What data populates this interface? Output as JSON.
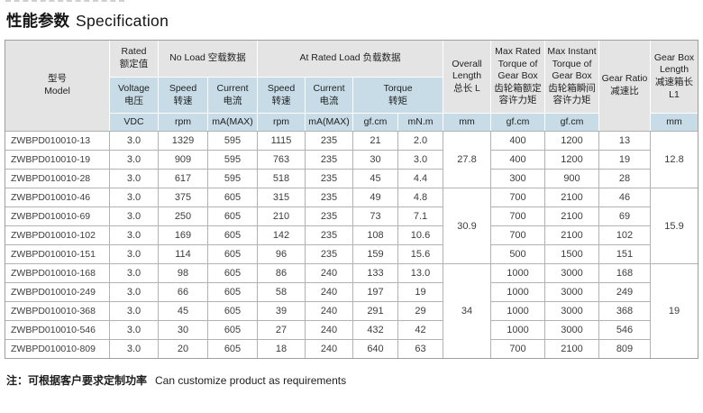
{
  "title": {
    "zh": "性能参数",
    "en": "Specification"
  },
  "note": {
    "zh": "注：可根据客户要求定制功率",
    "en": "Can customize product as requirements"
  },
  "colors": {
    "header_gray": "#e4e4e4",
    "header_blue": "#c7dce7",
    "grid_line": "#b2b2b2",
    "outer_border": "#9f9f9f",
    "text": "#3d3d3d"
  },
  "table": {
    "header": {
      "model": "型号\nModel",
      "rated": "Rated\n额定值",
      "no_load": "No Load 空载数据",
      "at_rated_load": "At Rated Load 负载数据",
      "voltage": "Voltage\n电压",
      "speed": "Speed\n转速",
      "current": "Current\n电流",
      "torque": "Torque\n转矩",
      "overall_length": "Overall\nLength\n总长 L",
      "max_rated_torque": "Max Rated\nTorque of\nGear Box\n齿轮箱额定\n容许力矩",
      "max_instant_torque": "Max Instant\nTorque of\nGear Box\n齿轮箱瞬间\n容许力矩",
      "gear_ratio": "Gear Ratio\n减速比",
      "gearbox_length": "Gear Box\nLength\n减速箱长\nL1",
      "units": {
        "vdc": "VDC",
        "rpm": "rpm",
        "ma_max": "mA(MAX)",
        "gf_cm": "gf.cm",
        "mn_m": "mN.m",
        "mm": "mm"
      }
    },
    "rows": [
      [
        "ZWBPD010010-13",
        "3.0",
        "1329",
        "595",
        "1115",
        "235",
        "21",
        "2.0",
        "400",
        "1200",
        "13"
      ],
      [
        "ZWBPD010010-19",
        "3.0",
        "909",
        "595",
        "763",
        "235",
        "30",
        "3.0",
        "400",
        "1200",
        "19"
      ],
      [
        "ZWBPD010010-28",
        "3.0",
        "617",
        "595",
        "518",
        "235",
        "45",
        "4.4",
        "300",
        "900",
        "28"
      ],
      [
        "ZWBPD010010-46",
        "3.0",
        "375",
        "605",
        "315",
        "235",
        "49",
        "4.8",
        "700",
        "2100",
        "46"
      ],
      [
        "ZWBPD010010-69",
        "3.0",
        "250",
        "605",
        "210",
        "235",
        "73",
        "7.1",
        "700",
        "2100",
        "69"
      ],
      [
        "ZWBPD010010-102",
        "3.0",
        "169",
        "605",
        "142",
        "235",
        "108",
        "10.6",
        "700",
        "2100",
        "102"
      ],
      [
        "ZWBPD010010-151",
        "3.0",
        "114",
        "605",
        "96",
        "235",
        "159",
        "15.6",
        "500",
        "1500",
        "151"
      ],
      [
        "ZWBPD010010-168",
        "3.0",
        "98",
        "605",
        "86",
        "240",
        "133",
        "13.0",
        "1000",
        "3000",
        "168"
      ],
      [
        "ZWBPD010010-249",
        "3.0",
        "66",
        "605",
        "58",
        "240",
        "197",
        "19",
        "1000",
        "3000",
        "249"
      ],
      [
        "ZWBPD010010-368",
        "3.0",
        "45",
        "605",
        "39",
        "240",
        "291",
        "29",
        "1000",
        "3000",
        "368"
      ],
      [
        "ZWBPD010010-546",
        "3.0",
        "30",
        "605",
        "27",
        "240",
        "432",
        "42",
        "1000",
        "3000",
        "546"
      ],
      [
        "ZWBPD010010-809",
        "3.0",
        "20",
        "605",
        "18",
        "240",
        "640",
        "63",
        "700",
        "2100",
        "809"
      ]
    ],
    "merged": {
      "overall_length_mm": [
        {
          "value": "27.8",
          "rows": 3
        },
        {
          "value": "30.9",
          "rows": 4
        },
        {
          "value": "34",
          "rows": 5
        }
      ],
      "gearbox_length_mm": [
        {
          "value": "12.8",
          "rows": 3
        },
        {
          "value": "15.9",
          "rows": 4
        },
        {
          "value": "19",
          "rows": 5
        }
      ]
    }
  }
}
